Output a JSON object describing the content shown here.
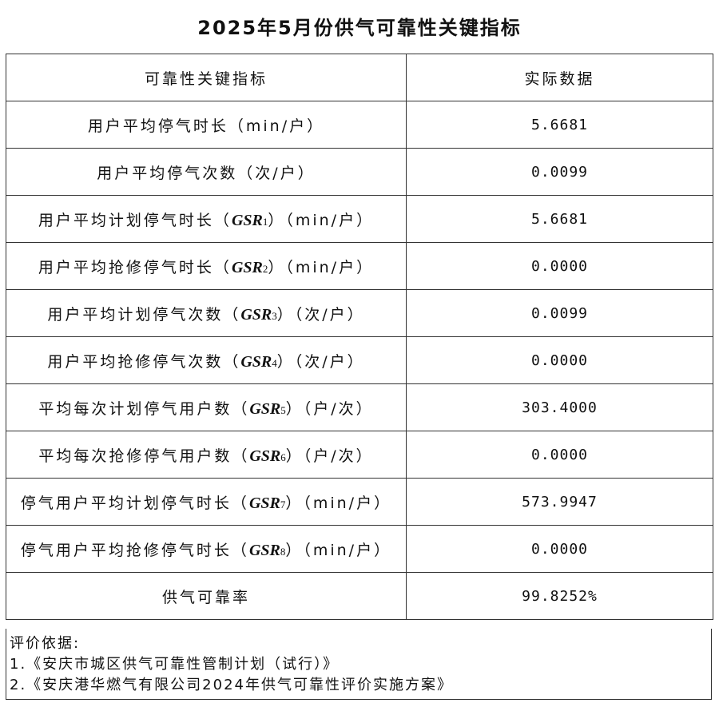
{
  "title": "2025年5月份供气可靠性关键指标",
  "headers": [
    "可靠性关键指标",
    "实际数据"
  ],
  "rows": [
    {
      "label": "用户平均停气时长",
      "code": "",
      "sub": "",
      "unit": "（min/户）",
      "value": "5.6681"
    },
    {
      "label": "用户平均停气次数",
      "code": "",
      "sub": "",
      "unit": "（次/户）",
      "value": "0.0099"
    },
    {
      "label": "用户平均计划停气时长（",
      "code": "GSR",
      "sub": "1",
      "unit": "）（min/户）",
      "value": "5.6681"
    },
    {
      "label": "用户平均抢修停气时长（",
      "code": "GSR",
      "sub": "2",
      "unit": "）（min/户）",
      "value": "0.0000"
    },
    {
      "label": "用户平均计划停气次数（",
      "code": "GSR",
      "sub": "3",
      "unit": "）（次/户）",
      "value": "0.0099"
    },
    {
      "label": "用户平均抢修停气次数（",
      "code": "GSR",
      "sub": "4",
      "unit": "）（次/户）",
      "value": "0.0000"
    },
    {
      "label": "平均每次计划停气用户数（",
      "code": "GSR",
      "sub": "5",
      "unit": "）（户/次）",
      "value": "303.4000"
    },
    {
      "label": "平均每次抢修停气用户数（",
      "code": "GSR",
      "sub": "6",
      "unit": "）（户/次）",
      "value": "0.0000"
    },
    {
      "label": "停气用户平均计划停气时长（",
      "code": "GSR",
      "sub": "7",
      "unit": "）（min/户）",
      "value": "573.9947"
    },
    {
      "label": "停气用户平均抢修停气时长（",
      "code": "GSR",
      "sub": "8",
      "unit": "）（min/户）",
      "value": "0.0000"
    },
    {
      "label": "供气可靠率",
      "code": "",
      "sub": "",
      "unit": "",
      "value": "99.8252%"
    }
  ],
  "notes": {
    "heading": "评价依据:",
    "items": [
      "1.《安庆市城区供气可靠性管制计划（试行）》",
      "2.《安庆港华燃气有限公司2024年供气可靠性评价实施方案》"
    ]
  }
}
